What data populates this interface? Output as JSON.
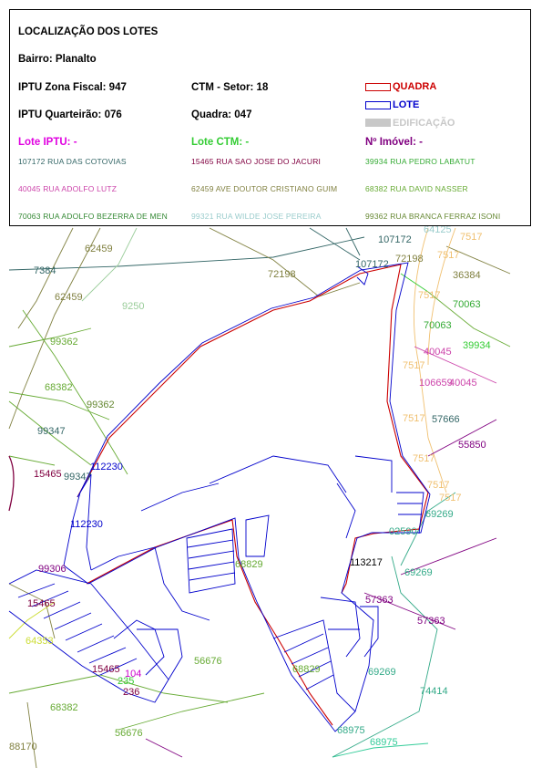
{
  "legend": {
    "title": "LOCALIZAÇÃO DOS LOTES",
    "bairro": "Bairro: Planalto",
    "iptu_zona": "IPTU Zona Fiscal: 947",
    "iptu_quarteirao": "IPTU Quarteirão: 076",
    "ctm_setor": "CTM - Setor: 18",
    "quadra": "Quadra: 047",
    "key_quadra": "QUADRA",
    "key_lote": "LOTE",
    "key_edificacao": "EDIFICAÇÃO",
    "lote_iptu": "Lote IPTU: -",
    "lote_ctm": "Lote CTM: -",
    "num_imovel": "Nº Imóvel: -",
    "streets": [
      "107172 RUA DAS COTOVIAS",
      "15465 RUA SAO JOSE DO JACURI",
      "39934 RUA PEDRO LABATUT",
      "40045 RUA ADOLFO LUTZ",
      "62459 AVE DOUTOR CRISTIANO GUIM",
      "68382 RUA DAVID NASSER",
      "70063 RUA ADOLFO BEZERRA DE MEN",
      "99321 RUA WILDE JOSE PEREIRA",
      "99362 RUA BRANCA FERRAZ ISONI"
    ]
  },
  "colors": {
    "quadra": "#cc0000",
    "lote": "#0000cc",
    "edificacao": "#c8c8c8",
    "lote_iptu": "#e000e0",
    "lote_ctm": "#33cc33",
    "num_imovel": "#800080",
    "streets": [
      "#336666",
      "#800040",
      "#33aa33",
      "#cc44aa",
      "#808040",
      "#66aa33",
      "#338833",
      "#99cccc",
      "#668833"
    ]
  },
  "map_labels": {
    "l107172a": "107172",
    "l107172b": "107172",
    "l72198a": "72198",
    "l72198b": "72198",
    "l7517a": "7517",
    "l7517b": "7517",
    "l7517c": "7517",
    "l7517d": "7517",
    "l7517e": "7517",
    "l7517f": "7517",
    "l7517g": "7517",
    "l7517h": "7517",
    "l36384": "36384",
    "l70063a": "70063",
    "l70063b": "70063",
    "l40045a": "40045",
    "l39934": "39934",
    "l106659": "106659",
    "l40045b": "40045",
    "l57666": "57666",
    "l55850": "55850",
    "l7384": "7384",
    "l62459a": "62459",
    "l62459b": "62459",
    "l9250": "9250",
    "l99362a": "99362",
    "l68382a": "68382",
    "l99362b": "99362",
    "l99347a": "99347",
    "l99347b": "99347",
    "l15465a": "15465",
    "l112230a": "112230",
    "l112230b": "112230",
    "l99306": "99306",
    "l15465b": "15465",
    "l64353": "64353",
    "l15465c": "15465",
    "l104": "104",
    "l235": "235",
    "l236": "236",
    "l68382b": "68382",
    "l56676a": "56676",
    "l56676b": "56676",
    "l88170": "88170",
    "l68829a": "68829",
    "l113217": "113217",
    "l02590": "02590",
    "l69269a": "69269",
    "l69269b": "69269",
    "l57363a": "57363",
    "l57363b": "57363",
    "l68829b": "68829",
    "l69269c": "69269",
    "l74414": "74414",
    "l68975a": "68975",
    "l68975b": "68975",
    "l64125": "64125"
  }
}
